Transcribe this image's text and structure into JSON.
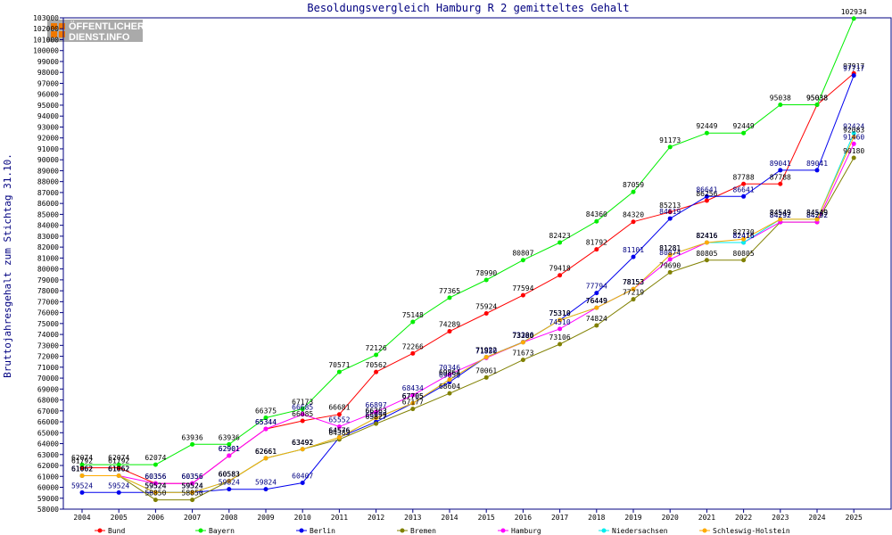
{
  "chart_data": {
    "type": "line",
    "title": "Besoldungsvergleich Hamburg R 2 gemitteltes Gehalt",
    "ylabel": "Bruttojahresgehalt zum Stichtag 31.10.",
    "xlabel": "",
    "logo": [
      "ÖFFENTLICHER",
      "DIENST.INFO"
    ],
    "ylim": [
      58000,
      103000
    ],
    "ytick_step": 1000,
    "grid": false,
    "legend_position": "bottom",
    "categories": [
      "2004",
      "2005",
      "2006",
      "2007",
      "2008",
      "2009",
      "2010",
      "2011",
      "2012",
      "2013",
      "2014",
      "2015",
      "2016",
      "2017",
      "2018",
      "2019",
      "2020",
      "2021",
      "2022",
      "2023",
      "2024",
      "2025"
    ],
    "series": [
      {
        "name": "Bund",
        "color": "#ff0000",
        "values": [
          61792,
          61792,
          60356,
          60356,
          62901,
          65344,
          66085,
          66681,
          70562,
          72266,
          74289,
          75924,
          77594,
          79418,
          81792,
          84320,
          85213,
          86256,
          87788,
          87788,
          95038,
          97917
        ]
      },
      {
        "name": "Bayern",
        "color": "#00ee00",
        "values": [
          62074,
          62074,
          62074,
          63936,
          63936,
          66375,
          67173,
          70571,
          72126,
          75148,
          77365,
          78990,
          80807,
          82423,
          84360,
          87059,
          91173,
          92449,
          92449,
          95038,
          95038,
          102934
        ]
      },
      {
        "name": "Berlin",
        "color": "#0000ee",
        "values": [
          59524,
          59524,
          59524,
          59524,
          59824,
          59824,
          60407,
          64576,
          65999,
          67705,
          69650,
          71922,
          73306,
          75310,
          77794,
          81101,
          84619,
          86641,
          86641,
          89041,
          89041,
          97717
        ]
      },
      {
        "name": "Bremen",
        "color": "#808000",
        "values": [
          61062,
          61062,
          58850,
          58850,
          60583,
          62661,
          63492,
          64383,
          65827,
          67177,
          68604,
          70061,
          71673,
          73106,
          74824,
          77219,
          79690,
          80805,
          80805,
          84292,
          84292,
          90180
        ]
      },
      {
        "name": "Hamburg",
        "color": "#ff00ff",
        "values": [
          61062,
          61062,
          60356,
          60356,
          62901,
          65344,
          66685,
          65552,
          66897,
          68434,
          70346,
          71850,
          73280,
          74510,
          76449,
          78153,
          80874,
          82416,
          82416,
          84292,
          84292,
          91460
        ]
      },
      {
        "name": "Niedersachsen",
        "color": "#00eeee",
        "values": [
          61062,
          61062,
          59524,
          59524,
          60583,
          62661,
          63492,
          64576,
          66363,
          67705,
          69864,
          71922,
          73280,
          75310,
          76449,
          78153,
          81281,
          82416,
          82416,
          84549,
          84549,
          92424
        ]
      },
      {
        "name": "Schleswig-Holstein",
        "color": "#ffaa00",
        "values": [
          61062,
          61062,
          59524,
          59524,
          60583,
          62661,
          63492,
          64576,
          66363,
          67705,
          69864,
          71922,
          73280,
          75310,
          76449,
          78153,
          81281,
          82416,
          82730,
          84549,
          84549,
          92083
        ]
      }
    ]
  }
}
